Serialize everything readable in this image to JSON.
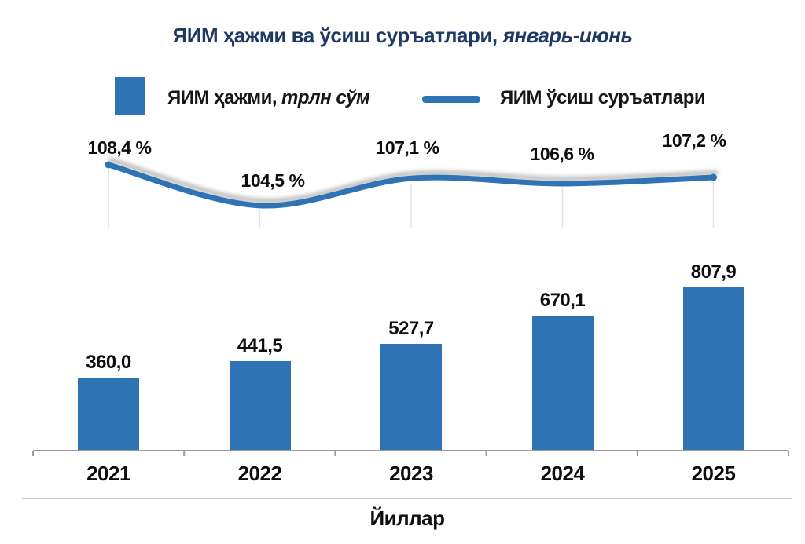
{
  "title": {
    "main": "ЯИМ ҳажми ва ўсиш суръатлари,",
    "period": "январь-июнь"
  },
  "legend": {
    "bars_label": "ЯИМ ҳажми,",
    "bars_unit": "трлн сўм",
    "line_label": "ЯИМ ўсиш суръатлари"
  },
  "axis": {
    "xlabel": "Йиллар"
  },
  "colors": {
    "primary": "#2E74B5",
    "title": "#1F3864",
    "gridline": "#E3E3E3",
    "axis_line": "#9A9A9A",
    "shadow": "#9E9E9E",
    "label_text": "#0E0E0E"
  },
  "chart_data": [
    {
      "type": "line",
      "name": "ЯИМ ўсиш суръатлари",
      "categories": [
        "2021",
        "2022",
        "2023",
        "2024",
        "2025"
      ],
      "values": [
        108.4,
        104.5,
        107.1,
        106.6,
        107.2
      ],
      "labels": [
        "108,4 %",
        "104,5 %",
        "107,1 %",
        "106,6 %",
        "107,2 %"
      ],
      "unit": "%",
      "legend_position": "top",
      "grid": "vertical-drop-lines-only",
      "markers": "endpoints-only"
    },
    {
      "type": "bar",
      "name": "ЯИМ ҳажми, трлн сўм",
      "categories": [
        "2021",
        "2022",
        "2023",
        "2024",
        "2025"
      ],
      "values": [
        360.0,
        441.5,
        527.7,
        670.1,
        807.9
      ],
      "labels": [
        "360,0",
        "441,5",
        "527,7",
        "670,1",
        "807,9"
      ],
      "unit": "трлн сўм",
      "xlabel": "Йиллар",
      "ylim": [
        0,
        900
      ],
      "value_labels": "above-bars"
    }
  ]
}
